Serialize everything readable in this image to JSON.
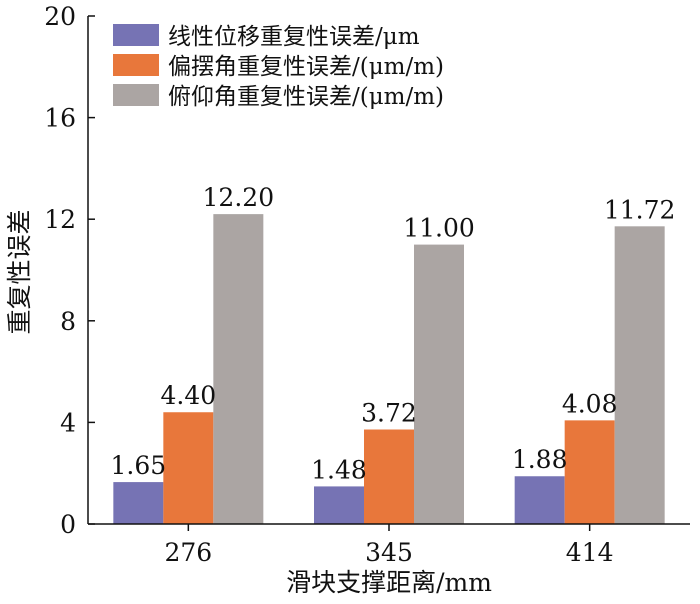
{
  "chart_data": {
    "type": "bar",
    "xlabel": "滑块支撑距离/mm",
    "ylabel": "重复性误差",
    "categories": [
      "276",
      "345",
      "414"
    ],
    "series": [
      {
        "name": "线性位移重复性误差/μm",
        "color": "#7673b4",
        "values": [
          1.65,
          1.48,
          1.88
        ],
        "labels": [
          "1.65",
          "1.48",
          "1.88"
        ]
      },
      {
        "name": "偏摆角重复性误差/(μm/m)",
        "color": "#e8773b",
        "values": [
          4.4,
          3.72,
          4.08
        ],
        "labels": [
          "4.40",
          "3.72",
          "4.08"
        ]
      },
      {
        "name": "俯仰角重复性误差/(μm/m)",
        "color": "#aba5a3",
        "values": [
          12.2,
          11.0,
          11.72
        ],
        "labels": [
          "12.20",
          "11.00",
          "11.72"
        ]
      }
    ],
    "ylim": [
      0,
      20
    ],
    "yticks": [
      "0",
      "4",
      "8",
      "12",
      "16",
      "20"
    ],
    "legend_position": "top-left",
    "grid": false
  }
}
